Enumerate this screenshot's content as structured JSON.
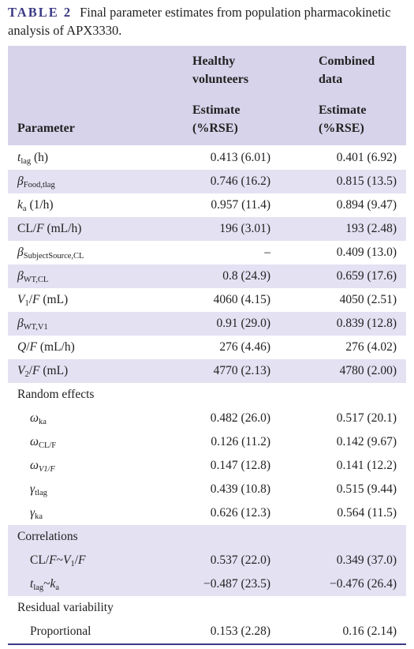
{
  "title": {
    "label": "TABLE 2",
    "text": "Final parameter estimates from population pharmacokinetic analysis of APX3330."
  },
  "table": {
    "header": {
      "parameter": "Parameter",
      "columns": [
        {
          "group": "Healthy volunteers",
          "sub": "Estimate (%RSE)"
        },
        {
          "group": "Combined data",
          "sub": "Estimate (%RSE)"
        }
      ]
    },
    "rows": [
      {
        "parameter": [
          "t",
          "lag",
          " (h)"
        ],
        "values": [
          "0.413 (6.01)",
          "0.401 (6.92)"
        ]
      },
      {
        "parameter": [
          "β",
          "Food,tlag"
        ],
        "values": [
          "0.746 (16.2)",
          "0.815 (13.5)"
        ]
      },
      {
        "parameter": [
          "k",
          "a",
          " (1/h)"
        ],
        "values": [
          "0.957 (11.4)",
          "0.894 (9.47)"
        ]
      },
      {
        "parameter": [
          "CL/",
          "F",
          " (mL/h)"
        ],
        "values": [
          "196 (3.01)",
          "193 (2.48)"
        ]
      },
      {
        "parameter": [
          "β",
          "SubjectSource,CL"
        ],
        "values": [
          "–",
          "0.409 (13.0)"
        ]
      },
      {
        "parameter": [
          "β",
          "WT,CL"
        ],
        "values": [
          "0.8 (24.9)",
          "0.659 (17.6)"
        ]
      },
      {
        "parameter": [
          "V",
          "1",
          "/",
          "F",
          " (mL)"
        ],
        "values": [
          "4060 (4.15)",
          "4050 (2.51)"
        ]
      },
      {
        "parameter": [
          "β",
          "WT,V1"
        ],
        "values": [
          "0.91 (29.0)",
          "0.839 (12.8)"
        ]
      },
      {
        "parameter": [
          "Q",
          "/",
          "F",
          " (mL/h)"
        ],
        "values": [
          "276 (4.46)",
          "276 (4.02)"
        ]
      },
      {
        "parameter": [
          "V",
          "2",
          "/",
          "F",
          " (mL)"
        ],
        "values": [
          "4770 (2.13)",
          "4780 (2.00)"
        ]
      },
      {
        "parameter": [
          "Random effects"
        ],
        "values": []
      },
      {
        "parameter": [
          "ω",
          "ka"
        ],
        "values": [
          "0.482 (26.0)",
          "0.517 (20.1)"
        ]
      },
      {
        "parameter": [
          "ω",
          "CL/F"
        ],
        "values": [
          "0.126 (11.2)",
          "0.142 (9.67)"
        ]
      },
      {
        "parameter": [
          "ω",
          "V1/F"
        ],
        "values": [
          "0.147 (12.8)",
          "0.141 (12.2)"
        ]
      },
      {
        "parameter": [
          "γ",
          "tlag"
        ],
        "values": [
          "0.439 (10.8)",
          "0.515 (9.44)"
        ]
      },
      {
        "parameter": [
          "γ",
          "ka"
        ],
        "values": [
          "0.626 (12.3)",
          "0.564 (11.5)"
        ]
      },
      {
        "parameter": [
          "Correlations"
        ],
        "values": []
      },
      {
        "parameter": [
          "CL/",
          "F",
          "~",
          "V",
          "1",
          "/",
          "F"
        ],
        "values": [
          "0.537 (22.0)",
          "0.349 (37.0)"
        ]
      },
      {
        "parameter": [
          "t",
          "lag",
          "~",
          "k",
          "a"
        ],
        "values": [
          "−0.487 (23.5)",
          "−0.476 (26.4)"
        ]
      },
      {
        "parameter": [
          "Residual variability"
        ],
        "values": []
      },
      {
        "parameter": [
          "Proportional"
        ],
        "values": [
          "0.153 (2.28)",
          "0.16 (2.14)"
        ]
      }
    ]
  }
}
